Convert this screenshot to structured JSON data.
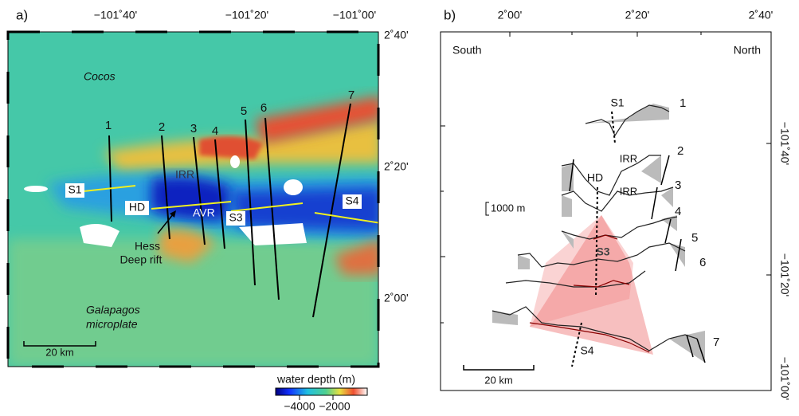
{
  "panel_a": {
    "label": "a)",
    "x_ticks": [
      "−101˚40'",
      "−101˚20'",
      "−101˚00'"
    ],
    "y_ticks": [
      "2˚40'",
      "2˚20'",
      "2˚00'"
    ],
    "plate_north": "Cocos",
    "plate_south": [
      "Galapagos",
      "microplate"
    ],
    "ridge": "IRR",
    "axial_ridge": "AVR",
    "deep": "HD",
    "rift": [
      "Hess",
      "Deep rift"
    ],
    "sections": [
      "S1",
      "S3",
      "S4"
    ],
    "profiles": [
      "1",
      "2",
      "3",
      "4",
      "5",
      "6",
      "7"
    ],
    "scale_bar": "20 km",
    "colorbar": {
      "title": "water depth (m)",
      "ticks": [
        "−4000",
        "−2000"
      ]
    }
  },
  "panel_b": {
    "label": "b)",
    "x_ticks": [
      "2˚00'",
      "2˚20'",
      "2˚40'"
    ],
    "y_ticks": [
      "−101˚40'",
      "−101˚20'",
      "−101˚00'"
    ],
    "south": "South",
    "north": "North",
    "features": [
      "S1",
      "HD",
      "IRR",
      "IRR",
      "S3",
      "S4"
    ],
    "vertical_scale": "1000 m",
    "scale_bar": "20 km",
    "profiles": [
      "1",
      "2",
      "3",
      "4",
      "5",
      "6",
      "7"
    ]
  }
}
